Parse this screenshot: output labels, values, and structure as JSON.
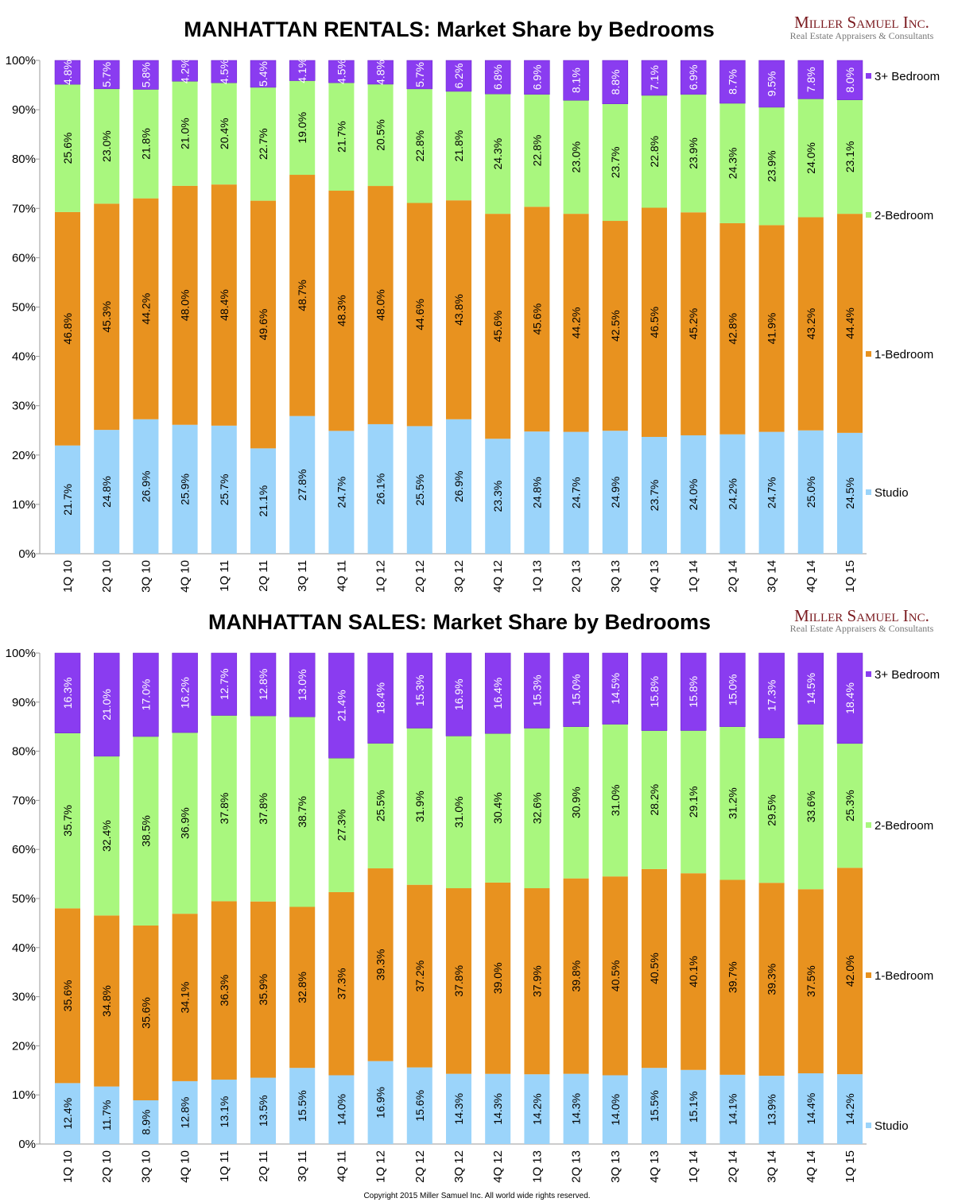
{
  "colors": {
    "Studio": "#9bd4fa",
    "1-Bedroom": "#e8921f",
    "2-Bedroom": "#a9f77e",
    "3+ Bedroom": "#8a3cf0"
  },
  "logo": {
    "name": "Miller Samuel Inc.",
    "tagline": "Real Estate Appraisers & Consultants"
  },
  "copyright": "Copyright 2015 Miller Samuel Inc.  All world wide rights reserved.",
  "chart_data": [
    {
      "type": "bar",
      "stacked": "100%",
      "title": "MANHATTAN RENTALS: Market Share by Bedrooms",
      "ylim": [
        0,
        100
      ],
      "yticks": [
        "0%",
        "10%",
        "20%",
        "30%",
        "40%",
        "50%",
        "60%",
        "70%",
        "80%",
        "90%",
        "100%"
      ],
      "legend": "right",
      "categories": [
        "1Q 10",
        "2Q 10",
        "3Q 10",
        "4Q 10",
        "1Q 11",
        "2Q 11",
        "3Q 11",
        "4Q 11",
        "1Q 12",
        "2Q 12",
        "3Q 12",
        "4Q 12",
        "1Q 13",
        "2Q 13",
        "3Q 13",
        "4Q 13",
        "1Q 14",
        "2Q 14",
        "3Q 14",
        "4Q 14",
        "1Q 15"
      ],
      "series": [
        {
          "name": "Studio",
          "values": [
            21.7,
            24.8,
            26.9,
            25.9,
            25.7,
            21.1,
            27.8,
            24.7,
            26.1,
            25.5,
            26.9,
            23.3,
            24.8,
            24.7,
            24.9,
            23.7,
            24.0,
            24.2,
            24.7,
            25.0,
            24.5
          ]
        },
        {
          "name": "1-Bedroom",
          "values": [
            46.8,
            45.3,
            44.2,
            48.0,
            48.4,
            49.6,
            48.7,
            48.3,
            48.0,
            44.6,
            43.8,
            45.6,
            45.6,
            44.2,
            42.5,
            46.5,
            45.2,
            42.8,
            41.9,
            43.2,
            44.4
          ]
        },
        {
          "name": "2-Bedroom",
          "values": [
            25.6,
            23.0,
            21.8,
            21.0,
            20.4,
            22.7,
            19.0,
            21.7,
            20.5,
            22.8,
            21.8,
            24.3,
            22.8,
            23.0,
            23.7,
            22.8,
            23.9,
            24.3,
            23.9,
            24.0,
            23.1
          ]
        },
        {
          "name": "3+ Bedroom",
          "values": [
            4.8,
            5.7,
            5.8,
            4.2,
            4.5,
            5.4,
            4.1,
            4.5,
            4.8,
            5.7,
            6.2,
            6.8,
            6.9,
            8.1,
            8.8,
            7.1,
            6.9,
            8.7,
            9.5,
            7.8,
            8.0
          ]
        }
      ]
    },
    {
      "type": "bar",
      "stacked": "100%",
      "title": "MANHATTAN SALES: Market Share by Bedrooms",
      "ylim": [
        0,
        100
      ],
      "yticks": [
        "0%",
        "10%",
        "20%",
        "30%",
        "40%",
        "50%",
        "60%",
        "70%",
        "80%",
        "90%",
        "100%"
      ],
      "legend": "right",
      "categories": [
        "1Q 10",
        "2Q 10",
        "3Q 10",
        "4Q 10",
        "1Q 11",
        "2Q 11",
        "3Q 11",
        "4Q 11",
        "1Q 12",
        "2Q 12",
        "3Q 12",
        "4Q 12",
        "1Q 13",
        "2Q 13",
        "3Q 13",
        "4Q 13",
        "1Q 14",
        "2Q 14",
        "3Q 14",
        "4Q 14",
        "1Q 15"
      ],
      "series": [
        {
          "name": "Studio",
          "values": [
            12.4,
            11.7,
            8.9,
            12.8,
            13.1,
            13.5,
            15.5,
            14.0,
            16.9,
            15.6,
            14.3,
            14.3,
            14.2,
            14.3,
            14.0,
            15.5,
            15.1,
            14.1,
            13.9,
            14.4,
            14.2
          ]
        },
        {
          "name": "1-Bedroom",
          "values": [
            35.6,
            34.8,
            35.6,
            34.1,
            36.3,
            35.9,
            32.8,
            37.3,
            39.3,
            37.2,
            37.8,
            39.0,
            37.9,
            39.8,
            40.5,
            40.5,
            40.1,
            39.7,
            39.3,
            37.5,
            42.0
          ]
        },
        {
          "name": "2-Bedroom",
          "values": [
            35.7,
            32.4,
            38.5,
            36.9,
            37.8,
            37.8,
            38.7,
            27.3,
            25.5,
            31.9,
            31.0,
            30.4,
            32.6,
            30.9,
            31.0,
            28.2,
            29.1,
            31.2,
            29.5,
            33.6,
            25.3
          ]
        },
        {
          "name": "3+ Bedroom",
          "values": [
            16.3,
            21.0,
            17.0,
            16.2,
            12.7,
            12.8,
            13.0,
            21.4,
            18.4,
            15.3,
            16.9,
            16.4,
            15.3,
            15.0,
            14.5,
            15.8,
            15.8,
            15.0,
            17.3,
            14.5,
            18.4
          ]
        }
      ]
    }
  ]
}
